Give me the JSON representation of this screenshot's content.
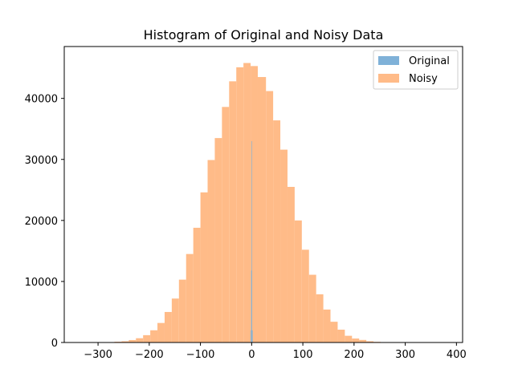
{
  "chart_data": {
    "type": "bar",
    "subtype": "histogram",
    "title": "Histogram of Original and Noisy Data",
    "xlabel": "",
    "ylabel": "",
    "xlim": [
      -366,
      412
    ],
    "ylim": [
      0,
      48500
    ],
    "xticks": [
      -300,
      -200,
      -100,
      0,
      100,
      200,
      300,
      400
    ],
    "yticks": [
      0,
      10000,
      20000,
      30000,
      40000
    ],
    "grid": false,
    "legend_position": "top-right",
    "series": [
      {
        "name": "Noisy",
        "color": "#ffbb88",
        "bin_edges": [
          -324,
          -310,
          -296,
          -282,
          -268,
          -254,
          -240,
          -226,
          -212,
          -198,
          -184,
          -170,
          -156,
          -142,
          -128,
          -114,
          -100,
          -86,
          -72,
          -58,
          -44,
          -30,
          -16,
          -2,
          12,
          28,
          42,
          56,
          70,
          84,
          98,
          112,
          126,
          140,
          154,
          168,
          182,
          196,
          210,
          224,
          238,
          252,
          266,
          280,
          294,
          308,
          322,
          336,
          350,
          364,
          378
        ],
        "counts": [
          5,
          10,
          30,
          60,
          120,
          200,
          400,
          700,
          1200,
          2000,
          3200,
          5000,
          7200,
          10300,
          14500,
          18800,
          24600,
          29900,
          33500,
          38600,
          42800,
          45100,
          45800,
          45300,
          43500,
          41200,
          36400,
          31600,
          25500,
          20000,
          15200,
          11100,
          7900,
          5400,
          3400,
          2100,
          1100,
          650,
          420,
          200,
          100,
          50,
          25,
          12,
          6,
          3,
          2,
          1,
          1,
          1
        ]
      },
      {
        "name": "Original",
        "color": "#7fb1d8",
        "bin_edges": [
          -2,
          -1,
          0,
          1,
          2
        ],
        "counts": [
          2000,
          11800,
          33000,
          2000
        ]
      }
    ]
  }
}
